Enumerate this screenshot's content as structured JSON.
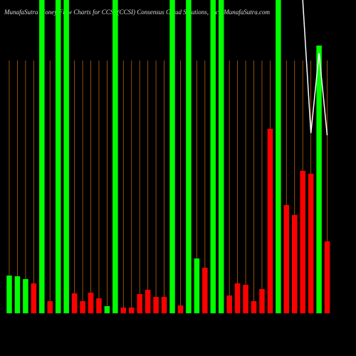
{
  "chart_data": {
    "type": "bar",
    "title": "MunafaSutra Money Flow Charts for CCSI (CCSI) Consensus Cloud Solutions, Inc.) MunafaSutra.com",
    "categories": [
      null,
      null,
      null,
      null,
      null,
      null,
      null,
      null,
      null,
      null,
      null,
      null,
      null,
      null,
      null,
      null,
      null,
      null,
      null,
      null,
      null,
      null,
      null,
      null,
      null,
      null,
      null,
      null,
      null,
      null,
      null,
      null,
      null,
      null,
      null,
      null,
      null,
      null,
      null,
      null
    ],
    "values": [
      53,
      52,
      48,
      42,
      440,
      17,
      440,
      440,
      28,
      17,
      29,
      21,
      10,
      440,
      8,
      8,
      27,
      33,
      23,
      23,
      440,
      11,
      440,
      77,
      64,
      440,
      440,
      25,
      42,
      40,
      17,
      34,
      259,
      440,
      152,
      138,
      200,
      196,
      376,
      101
    ],
    "colors": [
      "#00ff00",
      "#00ff00",
      "#00ff00",
      "#ff0000",
      "#00ff00",
      "#ff0000",
      "#00ff00",
      "#00ff00",
      "#ff0000",
      "#ff0000",
      "#ff0000",
      "#ff0000",
      "#00ff00",
      "#00ff00",
      "#ff0000",
      "#ff0000",
      "#ff0000",
      "#ff0000",
      "#ff0000",
      "#ff0000",
      "#00ff00",
      "#ff0000",
      "#00ff00",
      "#00ff00",
      "#ff0000",
      "#00ff00",
      "#00ff00",
      "#ff0000",
      "#ff0000",
      "#ff0000",
      "#ff0000",
      "#ff0000",
      "#ff0000",
      "#00ff00",
      "#ff0000",
      "#ff0000",
      "#ff0000",
      "#ff0000",
      "#00ff00",
      "#ff0000"
    ],
    "line_values": [
      null,
      null,
      null,
      null,
      null,
      null,
      null,
      null,
      null,
      null,
      null,
      null,
      null,
      null,
      null,
      null,
      null,
      null,
      null,
      null,
      null,
      null,
      null,
      null,
      null,
      null,
      null,
      null,
      null,
      null,
      null,
      null,
      null,
      null,
      null,
      null,
      440,
      253,
      365,
      250
    ],
    "line_color": "#ffffff",
    "grid_color": "#b8620a",
    "ylim": [
      0,
      440
    ]
  }
}
